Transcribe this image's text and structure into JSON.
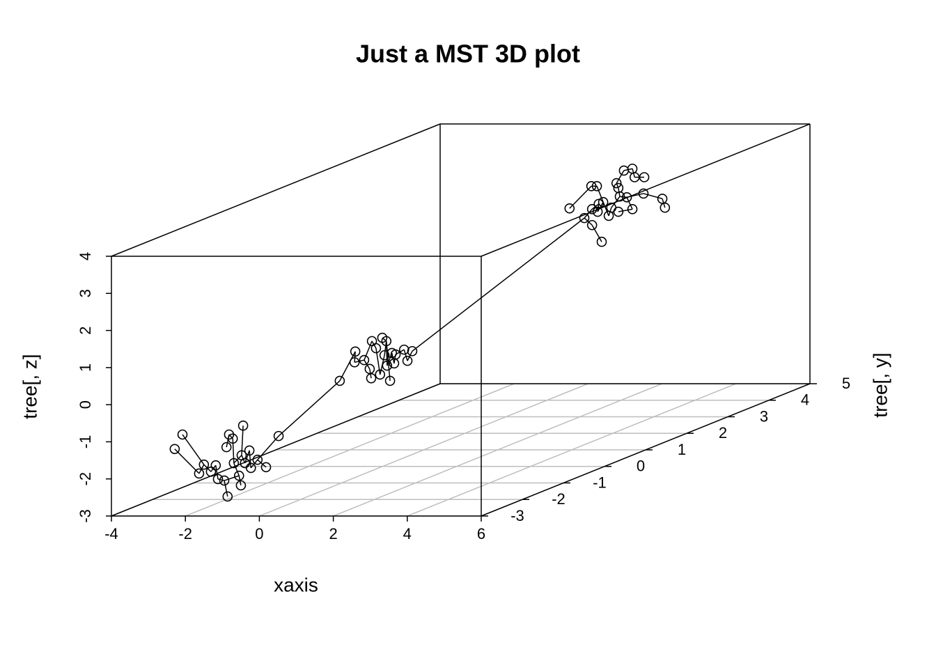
{
  "chart_data": {
    "type": "scatter3d",
    "title": "Just a MST 3D plot",
    "xlabel": "xaxis",
    "ylabel": "tree[, y]",
    "zlabel": "tree[, z]",
    "xlim": [
      -4,
      6
    ],
    "xticks": [
      -4,
      -2,
      0,
      2,
      4,
      6
    ],
    "ylim": [
      -3,
      5
    ],
    "yticks": [
      -3,
      -2,
      -1,
      0,
      1,
      2,
      3,
      4,
      5
    ],
    "zlim": [
      -3,
      4
    ],
    "zticks": [
      -3,
      -2,
      -1,
      0,
      1,
      2,
      3,
      4
    ],
    "grid": true,
    "color": "#000000",
    "x": [
      -3.4,
      -3.19,
      -2.74,
      -2.61,
      -2.42,
      -2.29,
      -2.23,
      -2.06,
      -1.97,
      -2.0,
      -1.93,
      -1.83,
      -1.8,
      -1.66,
      -1.61,
      -1.55,
      -1.59,
      -1.5,
      -1.38,
      -1.34,
      -1.16,
      -0.93,
      -0.59,
      -2.27,
      -1.85,
      -1.87,
      -1.61,
      -1.46,
      -1.4,
      -1.42,
      -1.29,
      -1.18,
      -1.12,
      -1.06,
      -1.01,
      -0.99,
      -0.91,
      -0.86,
      -0.8,
      -0.76,
      -0.53,
      -0.44,
      -0.31,
      0.61,
      1.01,
      1.22,
      1.48,
      1.2,
      1.35,
      1.22,
      1.4,
      1.37,
      1.52,
      1.67,
      1.74,
      1.88,
      1.93,
      1.97,
      1.93,
      2.08,
      2.16,
      2.31,
      2.31,
      2.37,
      2.63,
      2.61,
      3.12,
      3.19
    ],
    "y": [
      -2,
      -2,
      -2,
      -2,
      -2,
      -2,
      -2,
      -2,
      -2,
      -2,
      -2,
      -2,
      -2,
      -2,
      -2,
      -2,
      -2,
      -2,
      -2,
      -2,
      -2,
      -2,
      -2,
      1,
      1,
      1,
      1,
      1,
      1,
      1,
      1,
      1,
      1,
      1,
      1,
      1,
      1,
      1,
      1,
      1,
      1,
      1,
      1,
      4,
      4,
      4,
      4,
      4,
      4,
      4,
      4,
      4,
      4,
      4,
      4,
      4,
      4,
      4,
      4,
      4,
      4,
      4,
      4,
      4,
      4,
      4,
      4,
      4
    ],
    "z": [
      -1.64,
      -1.25,
      -2.3,
      -2.06,
      -2.25,
      -2.08,
      -2.45,
      -2.49,
      -2.92,
      -1.59,
      -1.25,
      -1.36,
      -2.02,
      -2.36,
      -2.62,
      -1.01,
      -1.81,
      -2.02,
      -1.68,
      -2.15,
      -1.93,
      -2.13,
      -1.29,
      -1.14,
      -0.35,
      -0.64,
      -0.58,
      -0.82,
      -0.07,
      -1.07,
      -0.26,
      -0.97,
      0.02,
      -0.45,
      -0.07,
      -0.73,
      -1.14,
      -0.39,
      -0.67,
      -0.43,
      -0.3,
      -0.6,
      -0.34,
      2.17,
      1.91,
      1.72,
      1.27,
      2.77,
      2.77,
      2.15,
      2.29,
      2.08,
      2.34,
      1.97,
      2.19,
      2.85,
      2.72,
      2.49,
      2.08,
      3.19,
      2.47,
      3.24,
      2.15,
      3.01,
      3.01,
      2.57,
      2.43,
      2.19
    ],
    "edges": [
      [
        0,
        2
      ],
      [
        1,
        3
      ],
      [
        2,
        3
      ],
      [
        3,
        4
      ],
      [
        4,
        5
      ],
      [
        5,
        6
      ],
      [
        6,
        7
      ],
      [
        7,
        8
      ],
      [
        7,
        13
      ],
      [
        9,
        10
      ],
      [
        10,
        11
      ],
      [
        11,
        12
      ],
      [
        12,
        13
      ],
      [
        13,
        14
      ],
      [
        12,
        16
      ],
      [
        15,
        16
      ],
      [
        16,
        17
      ],
      [
        17,
        18
      ],
      [
        18,
        19
      ],
      [
        19,
        20
      ],
      [
        20,
        21
      ],
      [
        20,
        22
      ],
      [
        22,
        23
      ],
      [
        23,
        24
      ],
      [
        24,
        25
      ],
      [
        25,
        26
      ],
      [
        26,
        27
      ],
      [
        27,
        29
      ],
      [
        26,
        28
      ],
      [
        28,
        30
      ],
      [
        30,
        31
      ],
      [
        31,
        33
      ],
      [
        33,
        34
      ],
      [
        34,
        36
      ],
      [
        32,
        34
      ],
      [
        34,
        35
      ],
      [
        35,
        37
      ],
      [
        37,
        38
      ],
      [
        38,
        39
      ],
      [
        39,
        40
      ],
      [
        40,
        41
      ],
      [
        41,
        42
      ],
      [
        42,
        44
      ],
      [
        43,
        47
      ],
      [
        47,
        48
      ],
      [
        44,
        45
      ],
      [
        45,
        46
      ],
      [
        44,
        49
      ],
      [
        49,
        50
      ],
      [
        50,
        51
      ],
      [
        51,
        52
      ],
      [
        52,
        53
      ],
      [
        53,
        54
      ],
      [
        54,
        57
      ],
      [
        57,
        56
      ],
      [
        56,
        55
      ],
      [
        55,
        59
      ],
      [
        59,
        61
      ],
      [
        61,
        63
      ],
      [
        63,
        64
      ],
      [
        57,
        60
      ],
      [
        60,
        62
      ],
      [
        62,
        58
      ],
      [
        60,
        65
      ],
      [
        65,
        66
      ],
      [
        66,
        67
      ],
      [
        48,
        52
      ]
    ]
  }
}
